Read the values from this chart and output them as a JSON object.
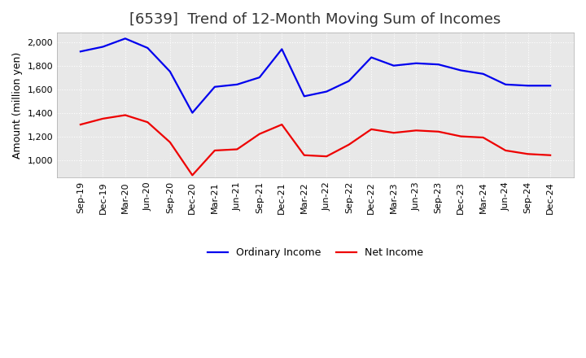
{
  "title": "[6539]  Trend of 12-Month Moving Sum of Incomes",
  "ylabel": "Amount (million yen)",
  "labels": [
    "Sep-19",
    "Dec-19",
    "Mar-20",
    "Jun-20",
    "Sep-20",
    "Dec-20",
    "Mar-21",
    "Jun-21",
    "Sep-21",
    "Dec-21",
    "Mar-22",
    "Jun-22",
    "Sep-22",
    "Dec-22",
    "Mar-23",
    "Jun-23",
    "Sep-23",
    "Dec-23",
    "Mar-24",
    "Jun-24",
    "Sep-24",
    "Dec-24"
  ],
  "ordinary_income": [
    1920,
    1960,
    2030,
    1950,
    1750,
    1400,
    1620,
    1640,
    1700,
    1940,
    1540,
    1580,
    1670,
    1870,
    1800,
    1820,
    1810,
    1760,
    1730,
    1640,
    1630,
    1630
  ],
  "net_income": [
    1300,
    1350,
    1380,
    1320,
    1150,
    870,
    1080,
    1090,
    1220,
    1300,
    1040,
    1030,
    1130,
    1260,
    1230,
    1250,
    1240,
    1200,
    1190,
    1080,
    1050,
    1040
  ],
  "ordinary_color": "#0000ee",
  "net_color": "#ee0000",
  "background_color": "#ffffff",
  "plot_bg_color": "#e8e8e8",
  "grid_color": "#ffffff",
  "ylim_min": 850,
  "ylim_max": 2080,
  "yticks": [
    1000,
    1200,
    1400,
    1600,
    1800,
    2000
  ],
  "line_width": 1.6,
  "title_fontsize": 13,
  "axis_label_fontsize": 9,
  "tick_fontsize": 8,
  "legend_entries": [
    "Ordinary Income",
    "Net Income"
  ],
  "legend_fontsize": 9
}
